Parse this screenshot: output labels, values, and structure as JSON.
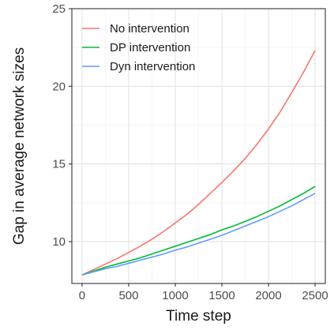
{
  "chart_data": {
    "type": "line",
    "xlabel": "Time step",
    "ylabel": "Gap in average network sizes",
    "xlim": [
      -110,
      2610
    ],
    "ylim": [
      7.3,
      25.0
    ],
    "xticks": [
      0,
      500,
      1000,
      1500,
      2000,
      2500
    ],
    "yticks": [
      10,
      15,
      20,
      25
    ],
    "grid": true,
    "legend_position": "top-left",
    "series": [
      {
        "name": "No intervention",
        "color": "#F8766D",
        "x": [
          0,
          125,
          250,
          375,
          500,
          625,
          750,
          875,
          1000,
          1125,
          1250,
          1375,
          1500,
          1625,
          1750,
          1875,
          2000,
          2125,
          2250,
          2375,
          2500
        ],
        "y": [
          7.85,
          8.2,
          8.55,
          8.9,
          9.3,
          9.7,
          10.15,
          10.65,
          11.2,
          11.75,
          12.4,
          13.1,
          13.8,
          14.55,
          15.35,
          16.25,
          17.25,
          18.35,
          19.6,
          20.9,
          22.3
        ]
      },
      {
        "name": "DP intervention",
        "color": "#00BA38",
        "x": [
          0,
          125,
          250,
          375,
          500,
          625,
          750,
          875,
          1000,
          1125,
          1250,
          1375,
          1500,
          1625,
          1750,
          1875,
          2000,
          2125,
          2250,
          2375,
          2500
        ],
        "y": [
          7.85,
          8.1,
          8.35,
          8.55,
          8.75,
          8.95,
          9.2,
          9.45,
          9.7,
          9.95,
          10.2,
          10.45,
          10.75,
          11.0,
          11.3,
          11.6,
          11.95,
          12.3,
          12.7,
          13.1,
          13.55
        ]
      },
      {
        "name": "Dyn intervention",
        "color": "#619CFF",
        "x": [
          0,
          125,
          250,
          375,
          500,
          625,
          750,
          875,
          1000,
          1125,
          1250,
          1375,
          1500,
          1625,
          1750,
          1875,
          2000,
          2125,
          2250,
          2375,
          2500
        ],
        "y": [
          7.85,
          8.05,
          8.25,
          8.4,
          8.6,
          8.8,
          9.0,
          9.2,
          9.45,
          9.65,
          9.9,
          10.15,
          10.4,
          10.7,
          11.0,
          11.3,
          11.6,
          11.95,
          12.3,
          12.7,
          13.1
        ]
      }
    ]
  }
}
